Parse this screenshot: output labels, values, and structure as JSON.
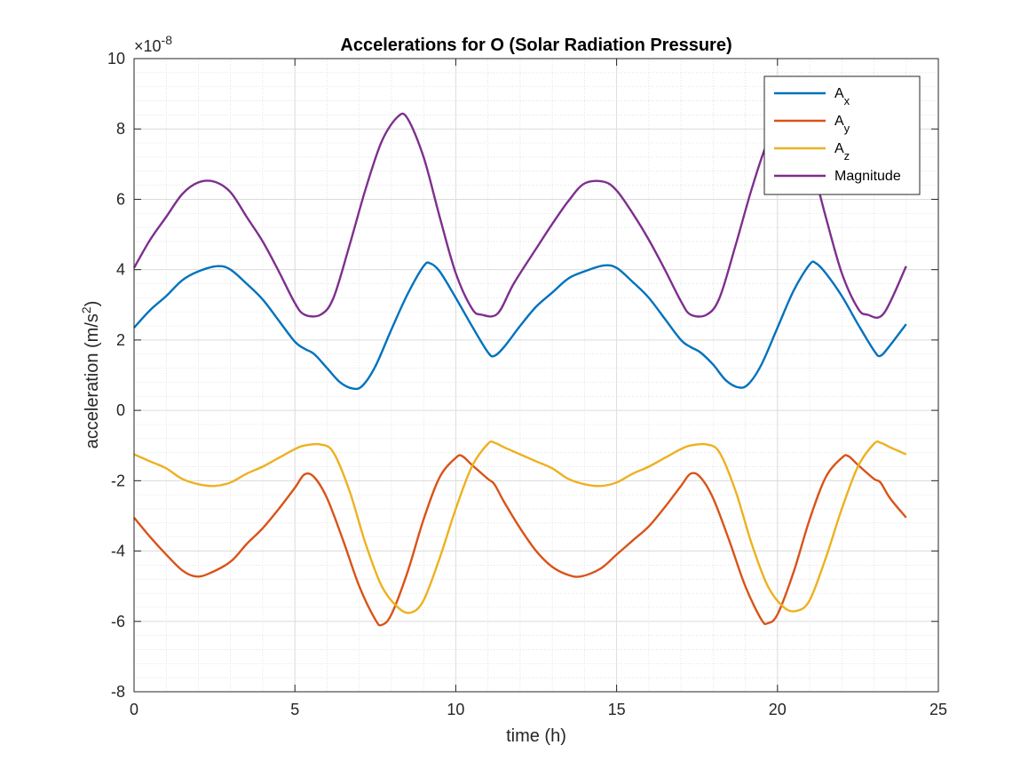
{
  "chart_data": {
    "type": "line",
    "title": "Accelerations for O (Solar Radiation Pressure)",
    "xlabel": "time (h)",
    "ylabel_main": "acceleration (m/s",
    "ylabel_sup": "2",
    "ylabel_close": ")",
    "exponent_base": "×10",
    "exponent_power": "-8",
    "xlim": [
      0,
      25
    ],
    "ylim": [
      -8,
      10
    ],
    "xticks": [
      0,
      5,
      10,
      15,
      20,
      25
    ],
    "yticks": [
      -8,
      -6,
      -4,
      -2,
      0,
      2,
      4,
      6,
      8,
      10
    ],
    "grid": true,
    "minor_grid": true,
    "legend_position": "top-right",
    "series": [
      {
        "name": "A",
        "subscript": "x",
        "color": "#0072BD",
        "points": [
          [
            0,
            2.35
          ],
          [
            0.5,
            2.85
          ],
          [
            1,
            3.25
          ],
          [
            1.5,
            3.7
          ],
          [
            2,
            3.95
          ],
          [
            2.6,
            4.1
          ],
          [
            3,
            4.0
          ],
          [
            3.5,
            3.6
          ],
          [
            4,
            3.15
          ],
          [
            4.5,
            2.55
          ],
          [
            5,
            1.95
          ],
          [
            5.3,
            1.75
          ],
          [
            5.6,
            1.6
          ],
          [
            6,
            1.2
          ],
          [
            6.4,
            0.8
          ],
          [
            6.8,
            0.62
          ],
          [
            7.1,
            0.7
          ],
          [
            7.5,
            1.25
          ],
          [
            8,
            2.3
          ],
          [
            8.5,
            3.3
          ],
          [
            9,
            4.1
          ],
          [
            9.2,
            4.18
          ],
          [
            9.5,
            3.95
          ],
          [
            10,
            3.2
          ],
          [
            10.5,
            2.4
          ],
          [
            11,
            1.65
          ],
          [
            11.2,
            1.55
          ],
          [
            11.5,
            1.8
          ],
          [
            12,
            2.4
          ],
          [
            12.5,
            2.95
          ],
          [
            13,
            3.35
          ],
          [
            13.5,
            3.75
          ],
          [
            14,
            3.95
          ],
          [
            14.6,
            4.12
          ],
          [
            15,
            4.05
          ],
          [
            15.5,
            3.65
          ],
          [
            16,
            3.2
          ],
          [
            16.5,
            2.6
          ],
          [
            17,
            2.0
          ],
          [
            17.3,
            1.8
          ],
          [
            17.6,
            1.65
          ],
          [
            18,
            1.3
          ],
          [
            18.4,
            0.85
          ],
          [
            18.8,
            0.65
          ],
          [
            19.1,
            0.75
          ],
          [
            19.5,
            1.3
          ],
          [
            20,
            2.35
          ],
          [
            20.5,
            3.4
          ],
          [
            21,
            4.15
          ],
          [
            21.2,
            4.18
          ],
          [
            21.5,
            3.9
          ],
          [
            22,
            3.25
          ],
          [
            22.5,
            2.45
          ],
          [
            23,
            1.7
          ],
          [
            23.2,
            1.55
          ],
          [
            23.5,
            1.85
          ],
          [
            24,
            2.45
          ]
        ]
      },
      {
        "name": "A",
        "subscript": "y",
        "color": "#D95319",
        "points": [
          [
            0,
            -3.05
          ],
          [
            0.5,
            -3.6
          ],
          [
            1,
            -4.1
          ],
          [
            1.5,
            -4.55
          ],
          [
            1.9,
            -4.72
          ],
          [
            2.3,
            -4.65
          ],
          [
            3,
            -4.3
          ],
          [
            3.5,
            -3.8
          ],
          [
            4,
            -3.35
          ],
          [
            4.5,
            -2.8
          ],
          [
            5,
            -2.2
          ],
          [
            5.3,
            -1.82
          ],
          [
            5.6,
            -1.9
          ],
          [
            6,
            -2.5
          ],
          [
            6.5,
            -3.7
          ],
          [
            7,
            -5.0
          ],
          [
            7.5,
            -5.95
          ],
          [
            7.7,
            -6.1
          ],
          [
            8,
            -5.8
          ],
          [
            8.5,
            -4.6
          ],
          [
            9,
            -3.1
          ],
          [
            9.5,
            -1.9
          ],
          [
            10,
            -1.35
          ],
          [
            10.2,
            -1.3
          ],
          [
            10.5,
            -1.55
          ],
          [
            11,
            -1.95
          ],
          [
            11.2,
            -2.1
          ],
          [
            11.5,
            -2.6
          ],
          [
            12,
            -3.35
          ],
          [
            12.5,
            -4.0
          ],
          [
            13,
            -4.45
          ],
          [
            13.5,
            -4.68
          ],
          [
            13.9,
            -4.72
          ],
          [
            14.5,
            -4.5
          ],
          [
            15,
            -4.1
          ],
          [
            15.5,
            -3.7
          ],
          [
            16,
            -3.3
          ],
          [
            16.5,
            -2.75
          ],
          [
            17,
            -2.15
          ],
          [
            17.3,
            -1.8
          ],
          [
            17.6,
            -1.9
          ],
          [
            18,
            -2.5
          ],
          [
            18.5,
            -3.7
          ],
          [
            19,
            -5.0
          ],
          [
            19.5,
            -5.95
          ],
          [
            19.7,
            -6.05
          ],
          [
            20,
            -5.8
          ],
          [
            20.5,
            -4.6
          ],
          [
            21,
            -3.1
          ],
          [
            21.5,
            -1.9
          ],
          [
            22,
            -1.35
          ],
          [
            22.2,
            -1.3
          ],
          [
            22.5,
            -1.55
          ],
          [
            23,
            -1.95
          ],
          [
            23.2,
            -2.05
          ],
          [
            23.5,
            -2.5
          ],
          [
            24,
            -3.05
          ]
        ]
      },
      {
        "name": "A",
        "subscript": "z",
        "color": "#EDB120",
        "points": [
          [
            0,
            -1.25
          ],
          [
            0.5,
            -1.45
          ],
          [
            1,
            -1.65
          ],
          [
            1.5,
            -1.95
          ],
          [
            2,
            -2.1
          ],
          [
            2.5,
            -2.15
          ],
          [
            3,
            -2.05
          ],
          [
            3.5,
            -1.8
          ],
          [
            4,
            -1.6
          ],
          [
            4.5,
            -1.35
          ],
          [
            5,
            -1.1
          ],
          [
            5.3,
            -1.0
          ],
          [
            5.8,
            -0.97
          ],
          [
            6.2,
            -1.2
          ],
          [
            6.7,
            -2.3
          ],
          [
            7.2,
            -3.8
          ],
          [
            7.7,
            -5.0
          ],
          [
            8.2,
            -5.6
          ],
          [
            8.6,
            -5.75
          ],
          [
            9,
            -5.4
          ],
          [
            9.5,
            -4.2
          ],
          [
            10,
            -2.8
          ],
          [
            10.5,
            -1.6
          ],
          [
            11,
            -0.95
          ],
          [
            11.2,
            -0.92
          ],
          [
            11.5,
            -1.05
          ],
          [
            12,
            -1.25
          ],
          [
            12.5,
            -1.45
          ],
          [
            13,
            -1.65
          ],
          [
            13.5,
            -1.95
          ],
          [
            14,
            -2.1
          ],
          [
            14.5,
            -2.15
          ],
          [
            15,
            -2.05
          ],
          [
            15.5,
            -1.8
          ],
          [
            16,
            -1.6
          ],
          [
            16.5,
            -1.35
          ],
          [
            17,
            -1.1
          ],
          [
            17.3,
            -1.0
          ],
          [
            17.8,
            -0.97
          ],
          [
            18.2,
            -1.2
          ],
          [
            18.7,
            -2.3
          ],
          [
            19.2,
            -3.8
          ],
          [
            19.7,
            -5.0
          ],
          [
            20.2,
            -5.6
          ],
          [
            20.6,
            -5.7
          ],
          [
            21,
            -5.4
          ],
          [
            21.5,
            -4.2
          ],
          [
            22,
            -2.8
          ],
          [
            22.5,
            -1.6
          ],
          [
            23,
            -0.95
          ],
          [
            23.2,
            -0.92
          ],
          [
            23.5,
            -1.05
          ],
          [
            24,
            -1.25
          ]
        ]
      },
      {
        "name": "Magnitude",
        "subscript": "",
        "color": "#7E2F8E",
        "points": [
          [
            0,
            4.05
          ],
          [
            0.5,
            4.85
          ],
          [
            1,
            5.5
          ],
          [
            1.5,
            6.15
          ],
          [
            2,
            6.48
          ],
          [
            2.5,
            6.5
          ],
          [
            3,
            6.2
          ],
          [
            3.5,
            5.5
          ],
          [
            4,
            4.8
          ],
          [
            4.5,
            3.95
          ],
          [
            5,
            3.05
          ],
          [
            5.3,
            2.72
          ],
          [
            5.8,
            2.72
          ],
          [
            6.2,
            3.2
          ],
          [
            6.7,
            4.7
          ],
          [
            7.2,
            6.3
          ],
          [
            7.7,
            7.65
          ],
          [
            8.2,
            8.35
          ],
          [
            8.5,
            8.3
          ],
          [
            9,
            7.2
          ],
          [
            9.5,
            5.5
          ],
          [
            10,
            3.9
          ],
          [
            10.5,
            2.9
          ],
          [
            10.8,
            2.72
          ],
          [
            11.3,
            2.75
          ],
          [
            11.8,
            3.6
          ],
          [
            12.5,
            4.6
          ],
          [
            13,
            5.3
          ],
          [
            13.5,
            5.95
          ],
          [
            14,
            6.45
          ],
          [
            14.6,
            6.5
          ],
          [
            15,
            6.25
          ],
          [
            15.5,
            5.6
          ],
          [
            16,
            4.85
          ],
          [
            16.5,
            4.0
          ],
          [
            17,
            3.1
          ],
          [
            17.3,
            2.72
          ],
          [
            17.8,
            2.72
          ],
          [
            18.2,
            3.2
          ],
          [
            18.7,
            4.7
          ],
          [
            19.2,
            6.3
          ],
          [
            19.7,
            7.65
          ],
          [
            20.2,
            8.35
          ],
          [
            20.5,
            8.3
          ],
          [
            21,
            7.2
          ],
          [
            21.5,
            5.5
          ],
          [
            22,
            3.9
          ],
          [
            22.5,
            2.9
          ],
          [
            22.8,
            2.72
          ],
          [
            23.3,
            2.75
          ],
          [
            24,
            4.1
          ]
        ]
      }
    ]
  }
}
